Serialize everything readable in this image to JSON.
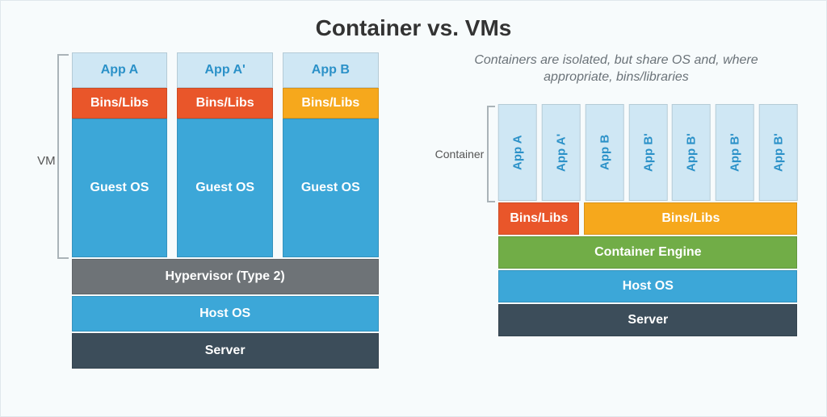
{
  "title": "Container vs. VMs",
  "colors": {
    "app_bg": "#cfe7f4",
    "app_text": "#2b91c8",
    "bins_orange": "#e9562a",
    "bins_amber": "#f6a81c",
    "guest_host": "#3ca7d8",
    "hypervisor": "#6e7377",
    "server": "#3c4d5a",
    "engine": "#71ad47",
    "bracket": "#aab3b8",
    "page_bg": "#f7fbfc",
    "text_muted": "#6a7278"
  },
  "vm": {
    "side_label": "VM",
    "columns": [
      {
        "app": "App A",
        "bins": "Bins/Libs",
        "bins_color": "#e9562a",
        "guest": "Guest OS"
      },
      {
        "app": "App A'",
        "bins": "Bins/Libs",
        "bins_color": "#e9562a",
        "guest": "Guest OS"
      },
      {
        "app": "App B",
        "bins": "Bins/Libs",
        "bins_color": "#f6a81c",
        "guest": "Guest OS"
      }
    ],
    "hypervisor": "Hypervisor (Type 2)",
    "host": "Host OS",
    "server": "Server"
  },
  "container": {
    "subtitle": "Containers are isolated, but share OS and, where appropriate, bins/libraries",
    "side_label": "Container",
    "apps": [
      "App A",
      "App A'",
      "App B",
      "App B'",
      "App B'",
      "App B'",
      "App B'"
    ],
    "bins1": "Bins/Libs",
    "bins2": "Bins/Libs",
    "engine": "Container Engine",
    "host": "Host OS",
    "server": "Server"
  }
}
